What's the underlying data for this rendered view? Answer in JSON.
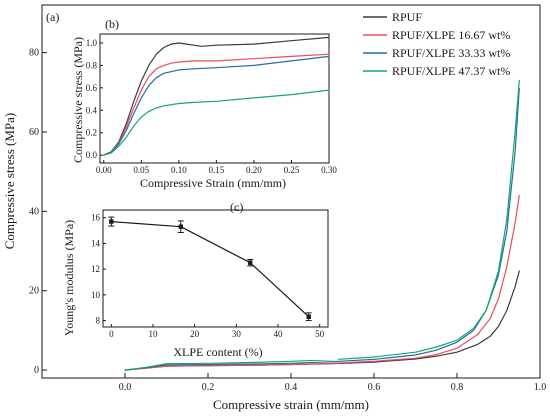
{
  "chart_data": [
    {
      "panel": "(a)",
      "type": "line",
      "xlabel": "Compressive strain (mm/mm)",
      "ylabel": "Compressive stress (MPa)",
      "xlim": [
        -0.2,
        1.0
      ],
      "ylim": [
        -2,
        92
      ],
      "xticks": [
        0.0,
        0.2,
        0.4,
        0.6,
        0.8,
        1.0
      ],
      "xtick_labels": [
        "0.0",
        "0.2",
        "0.4",
        "0.6",
        "0.8",
        "1.0"
      ],
      "yticks": [
        0,
        20,
        40,
        60,
        80
      ],
      "ytick_labels": [
        "0",
        "20",
        "40",
        "60",
        "80"
      ],
      "legend_position": "top-right",
      "series": [
        {
          "name": "RPUF",
          "color": "#3a3a3a",
          "x": [
            0.0,
            0.05,
            0.1,
            0.2,
            0.3,
            0.4,
            0.5,
            0.6,
            0.7,
            0.75,
            0.8,
            0.85,
            0.88,
            0.9,
            0.92,
            0.94,
            0.95
          ],
          "y": [
            0,
            0.5,
            1.0,
            1.1,
            1.2,
            1.4,
            1.6,
            2.0,
            2.8,
            3.5,
            4.5,
            6.5,
            8.5,
            11,
            15,
            21,
            25
          ]
        },
        {
          "name": "RPUF/XLPE 16.67 wt%",
          "color": "#ef4a5a",
          "x": [
            0.0,
            0.05,
            0.1,
            0.2,
            0.3,
            0.4,
            0.5,
            0.6,
            0.7,
            0.75,
            0.8,
            0.85,
            0.88,
            0.9,
            0.92,
            0.94,
            0.95
          ],
          "y": [
            0,
            0.5,
            1.0,
            1.1,
            1.2,
            1.4,
            1.7,
            2.2,
            3.0,
            3.9,
            5.5,
            9.0,
            13,
            18,
            26,
            37,
            44
          ]
        },
        {
          "name": "RPUF/XLPE 33.33 wt%",
          "color": "#1f6fa8",
          "x": [
            0.0,
            0.05,
            0.1,
            0.2,
            0.3,
            0.4,
            0.5,
            0.6,
            0.7,
            0.75,
            0.8,
            0.84,
            0.87,
            0.9,
            0.92,
            0.94,
            0.95
          ],
          "y": [
            0,
            0.6,
            1.3,
            1.4,
            1.5,
            1.7,
            2.1,
            2.7,
            3.8,
            5.0,
            7.0,
            10,
            15,
            24,
            35,
            55,
            71
          ]
        },
        {
          "name": "RPUF/XLPE 47.37 wt%",
          "color": "#1aa56a",
          "x": [
            0.0,
            0.05,
            0.1,
            0.2,
            0.3,
            0.4,
            0.5,
            0.6,
            0.7,
            0.75,
            0.8,
            0.84,
            0.87,
            0.9,
            0.92,
            0.94,
            0.95
          ],
          "y": [
            0,
            0.7,
            1.6,
            1.7,
            1.9,
            2.2,
            2.6,
            3.3,
            4.5,
            5.8,
            7.5,
            10.5,
            15,
            25,
            38,
            60,
            73
          ]
        }
      ]
    },
    {
      "panel": "(b)",
      "type": "line",
      "xlabel": "Compressive Strain (mm/mm)",
      "ylabel": "Compressive stress (MPa)",
      "xlim": [
        -0.005,
        0.3
      ],
      "ylim": [
        -0.07,
        1.08
      ],
      "xticks": [
        0.0,
        0.05,
        0.1,
        0.15,
        0.2,
        0.25,
        0.3
      ],
      "xtick_labels": [
        "0.00",
        "0.05",
        "0.10",
        "0.15",
        "0.20",
        "0.25",
        "0.30"
      ],
      "yticks": [
        0.0,
        0.2,
        0.4,
        0.6,
        0.8,
        1.0
      ],
      "ytick_labels": [
        "0.0",
        "0.2",
        "0.4",
        "0.6",
        "0.8",
        "1.0"
      ],
      "series": [
        {
          "color": "#3a3a3a",
          "x": [
            0.0,
            0.01,
            0.02,
            0.03,
            0.04,
            0.05,
            0.06,
            0.07,
            0.08,
            0.09,
            0.1,
            0.11,
            0.12,
            0.13,
            0.15,
            0.2,
            0.25,
            0.3
          ],
          "y": [
            0.0,
            0.03,
            0.12,
            0.28,
            0.48,
            0.66,
            0.8,
            0.9,
            0.96,
            0.99,
            1.0,
            0.99,
            0.98,
            0.97,
            0.98,
            0.99,
            1.02,
            1.05
          ]
        },
        {
          "color": "#ef4a5a",
          "x": [
            0.0,
            0.01,
            0.02,
            0.03,
            0.04,
            0.05,
            0.06,
            0.07,
            0.08,
            0.09,
            0.1,
            0.12,
            0.15,
            0.2,
            0.25,
            0.3
          ],
          "y": [
            0.0,
            0.03,
            0.11,
            0.25,
            0.42,
            0.58,
            0.7,
            0.77,
            0.8,
            0.82,
            0.83,
            0.84,
            0.84,
            0.86,
            0.88,
            0.9
          ]
        },
        {
          "color": "#1f6fa8",
          "x": [
            0.0,
            0.01,
            0.02,
            0.03,
            0.04,
            0.05,
            0.06,
            0.07,
            0.08,
            0.1,
            0.12,
            0.15,
            0.2,
            0.25,
            0.3
          ],
          "y": [
            0.0,
            0.03,
            0.1,
            0.22,
            0.37,
            0.51,
            0.62,
            0.69,
            0.73,
            0.76,
            0.77,
            0.78,
            0.8,
            0.84,
            0.88
          ]
        },
        {
          "color": "#1aa56a",
          "x": [
            0.0,
            0.01,
            0.02,
            0.03,
            0.04,
            0.05,
            0.06,
            0.07,
            0.08,
            0.1,
            0.12,
            0.15,
            0.2,
            0.25,
            0.3
          ],
          "y": [
            0.0,
            0.02,
            0.08,
            0.16,
            0.26,
            0.34,
            0.39,
            0.42,
            0.44,
            0.46,
            0.47,
            0.48,
            0.51,
            0.54,
            0.58
          ]
        }
      ]
    },
    {
      "panel": "(c)",
      "type": "scatter",
      "xlabel": "XLPE content (%)",
      "ylabel": "Young's modulus (MPa)",
      "xlim": [
        -2,
        52
      ],
      "ylim": [
        7.5,
        16.6
      ],
      "xticks": [
        0,
        10,
        20,
        30,
        40,
        50
      ],
      "xtick_labels": [
        "0",
        "10",
        "20",
        "30",
        "40",
        "50"
      ],
      "yticks": [
        8,
        10,
        12,
        14,
        16
      ],
      "ytick_labels": [
        "8",
        "10",
        "12",
        "14",
        "16"
      ],
      "series": [
        {
          "color": "#1a1a1a",
          "x": [
            0,
            16.67,
            33.33,
            47.37
          ],
          "y": [
            15.7,
            15.3,
            12.5,
            8.3
          ],
          "err": [
            0.35,
            0.45,
            0.25,
            0.3
          ]
        }
      ]
    }
  ]
}
